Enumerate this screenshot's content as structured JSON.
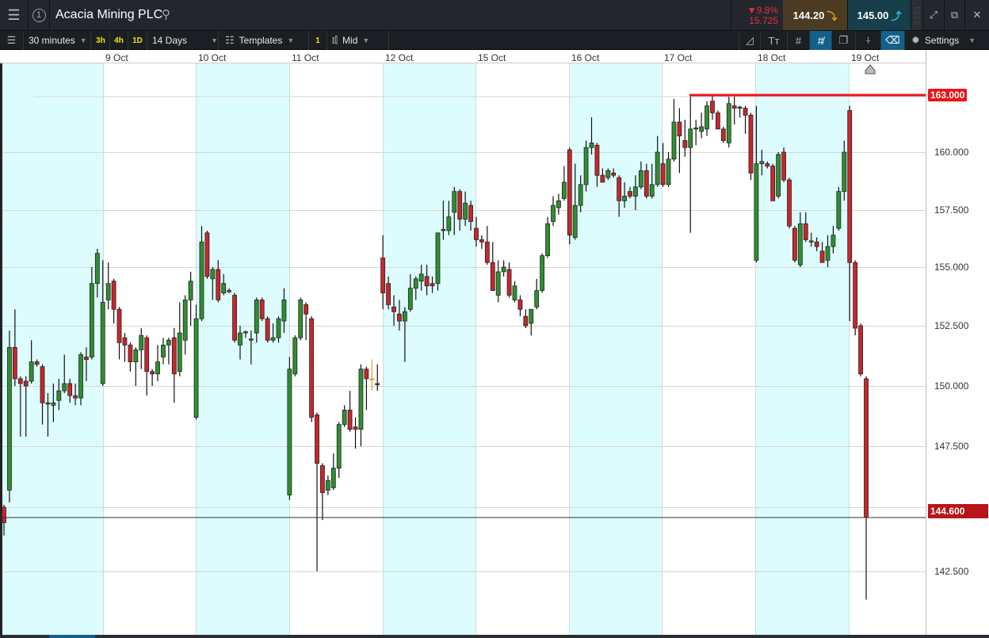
{
  "header": {
    "title": "Acacia Mining PLC",
    "window_number": "1",
    "change_pct": "9.8%",
    "change_value": "15.725",
    "sell_price": "144.20",
    "buy_price": "145.00"
  },
  "toolbar": {
    "interval": "30 minutes",
    "quick_ranges": [
      "3h",
      "4h",
      "1D"
    ],
    "range": "14 Days",
    "templates": "Templates",
    "indicator_count": "1",
    "price_type": "Mid",
    "settings": "Settings",
    "tools": [
      "drawing-tool",
      "text-size",
      "grid",
      "snap-grid",
      "layers",
      "crosshair",
      "price-tag"
    ],
    "active_tools": [
      "snap-grid",
      "price-tag"
    ]
  },
  "colors": {
    "up": "#2f8f2f",
    "down": "#c8262b",
    "flat": "#e0a040",
    "shade": "#ddfcfe",
    "change": "#e8303a",
    "sell_bg": "#4a3b22",
    "buy_bg": "#173f4b"
  },
  "chart_data": {
    "type": "candlestick",
    "x_labels": [
      "9 Oct",
      "10 Oct",
      "11 Oct",
      "12 Oct",
      "15 Oct",
      "16 Oct",
      "17 Oct",
      "18 Oct",
      "19 Oct"
    ],
    "y_ticks": [
      "160.000",
      "157.500",
      "155.000",
      "152.500",
      "150.000",
      "147.500",
      "142.500"
    ],
    "horizontal_line": {
      "label": "163.000"
    },
    "current_price": {
      "value": 144.6,
      "label": "144.600"
    },
    "candles_ohlc": [
      [
        145.0,
        145.1,
        143.9,
        144.4
      ],
      [
        145.7,
        152.3,
        145.2,
        151.6
      ],
      [
        151.6,
        153.2,
        150.0,
        150.3
      ],
      [
        150.3,
        150.4,
        147.9,
        150.1
      ],
      [
        150.2,
        150.4,
        147.9,
        150.0
      ],
      [
        150.2,
        151.9,
        150.1,
        151.0
      ],
      [
        151.0,
        151.1,
        150.8,
        150.9
      ],
      [
        150.8,
        150.9,
        148.4,
        149.3
      ],
      [
        149.3,
        149.7,
        147.9,
        149.25
      ],
      [
        149.2,
        150.1,
        148.5,
        149.3
      ],
      [
        149.4,
        150.3,
        149.0,
        149.8
      ],
      [
        149.8,
        151.3,
        149.7,
        150.1
      ],
      [
        150.1,
        150.3,
        149.3,
        149.6
      ],
      [
        149.6,
        150.1,
        149.2,
        149.5
      ],
      [
        149.5,
        151.4,
        149.2,
        151.3
      ],
      [
        151.2,
        151.6,
        150.2,
        151.1
      ],
      [
        151.2,
        155.0,
        151.1,
        154.3
      ],
      [
        154.3,
        155.8,
        153.7,
        155.6
      ],
      [
        150.1,
        155.3,
        150.0,
        153.5
      ],
      [
        153.6,
        155.2,
        153.2,
        154.3
      ],
      [
        154.4,
        154.5,
        152.6,
        153.2
      ],
      [
        153.2,
        153.3,
        151.1,
        151.8
      ],
      [
        152.0,
        152.2,
        151.0,
        151.7
      ],
      [
        151.7,
        151.8,
        150.6,
        151.0
      ],
      [
        151.0,
        151.6,
        150.0,
        151.5
      ],
      [
        151.5,
        152.4,
        150.7,
        152.1
      ],
      [
        152.0,
        152.1,
        149.6,
        150.6
      ],
      [
        150.6,
        150.7,
        150.0,
        150.5
      ],
      [
        150.5,
        151.7,
        150.2,
        151.0
      ],
      [
        151.2,
        152.0,
        150.9,
        151.7
      ],
      [
        151.7,
        152.0,
        150.9,
        151.9
      ],
      [
        152.0,
        152.4,
        149.3,
        150.5
      ],
      [
        150.6,
        153.5,
        150.4,
        152.2
      ],
      [
        151.9,
        153.8,
        151.3,
        153.6
      ],
      [
        153.6,
        154.8,
        152.5,
        154.4
      ],
      [
        148.7,
        153.4,
        148.6,
        152.8
      ],
      [
        152.8,
        156.8,
        152.7,
        156.1
      ],
      [
        156.5,
        156.6,
        154.5,
        154.6
      ],
      [
        154.5,
        155.0,
        153.6,
        154.9
      ],
      [
        154.9,
        155.3,
        153.5,
        153.6
      ],
      [
        153.9,
        154.7,
        153.8,
        154.3
      ],
      [
        154.0,
        154.1,
        153.9,
        153.95
      ],
      [
        153.8,
        153.9,
        151.8,
        151.9
      ],
      [
        151.7,
        152.5,
        151.1,
        152.2
      ],
      [
        152.2,
        152.3,
        152.0,
        152.25
      ],
      [
        151.9,
        152.3,
        150.9,
        151.95
      ],
      [
        152.2,
        153.7,
        151.8,
        153.6
      ],
      [
        153.6,
        153.7,
        152.7,
        152.8
      ],
      [
        152.8,
        152.9,
        151.8,
        151.9
      ],
      [
        151.9,
        152.6,
        151.8,
        152.0
      ],
      [
        152.0,
        152.9,
        151.8,
        152.8
      ],
      [
        152.7,
        154.1,
        152.2,
        153.6
      ],
      [
        145.5,
        151.2,
        145.3,
        150.7
      ],
      [
        150.5,
        152.1,
        150.4,
        152.0
      ],
      [
        152.0,
        153.7,
        151.9,
        153.6
      ],
      [
        153.4,
        153.5,
        151.9,
        153.0
      ],
      [
        152.8,
        152.9,
        148.5,
        148.7
      ],
      [
        148.8,
        148.9,
        142.5,
        146.8
      ],
      [
        146.7,
        146.8,
        144.5,
        145.6
      ],
      [
        145.7,
        146.3,
        145.5,
        146.1
      ],
      [
        145.8,
        147.2,
        145.7,
        146.6
      ],
      [
        146.6,
        148.5,
        146.2,
        148.4
      ],
      [
        148.4,
        149.2,
        148.3,
        149.0
      ],
      [
        149.0,
        149.8,
        148.1,
        148.2
      ],
      [
        148.3,
        148.7,
        147.4,
        148.2
      ],
      [
        148.2,
        150.9,
        147.5,
        150.7
      ],
      [
        150.7,
        150.8,
        149.0,
        150.3
      ],
      [
        150.3,
        151.1,
        149.8,
        150.3
      ],
      [
        150.1,
        150.9,
        149.8,
        150.05
      ],
      [
        155.4,
        156.4,
        153.2,
        153.9
      ],
      [
        154.3,
        154.6,
        153.2,
        153.4
      ],
      [
        153.3,
        153.8,
        152.5,
        153.1
      ],
      [
        153.0,
        153.6,
        152.3,
        152.7
      ],
      [
        152.7,
        153.3,
        151.0,
        153.1
      ],
      [
        153.2,
        154.7,
        153.1,
        154.1
      ],
      [
        154.1,
        154.6,
        153.6,
        154.5
      ],
      [
        154.4,
        155.1,
        154.0,
        154.7
      ],
      [
        154.6,
        155.1,
        153.8,
        154.2
      ],
      [
        154.3,
        154.6,
        153.9,
        154.2
      ],
      [
        154.3,
        156.5,
        154.0,
        156.5
      ],
      [
        156.6,
        157.9,
        156.2,
        156.65
      ],
      [
        156.6,
        157.9,
        156.4,
        157.2
      ],
      [
        157.4,
        158.5,
        156.4,
        158.3
      ],
      [
        158.3,
        158.4,
        156.6,
        157.1
      ],
      [
        157.1,
        158.3,
        156.8,
        157.8
      ],
      [
        157.7,
        157.9,
        156.6,
        157.0
      ],
      [
        156.7,
        157.2,
        155.9,
        156.2
      ],
      [
        156.2,
        156.4,
        155.8,
        156.1
      ],
      [
        156.1,
        156.8,
        155.1,
        155.2
      ],
      [
        155.2,
        156.1,
        154.0,
        154.0
      ],
      [
        153.8,
        155.3,
        153.5,
        154.8
      ],
      [
        154.8,
        155.3,
        154.6,
        155.0
      ],
      [
        154.9,
        155.2,
        153.7,
        153.8
      ],
      [
        153.6,
        154.4,
        153.5,
        154.2
      ],
      [
        153.6,
        153.8,
        152.9,
        153.2
      ],
      [
        152.9,
        153.2,
        152.4,
        152.5
      ],
      [
        152.6,
        153.2,
        152.1,
        153.2
      ],
      [
        153.3,
        154.5,
        153.2,
        154.0
      ],
      [
        154.0,
        155.6,
        153.9,
        155.5
      ],
      [
        155.5,
        157.2,
        155.4,
        156.9
      ],
      [
        157.0,
        158.1,
        156.8,
        157.7
      ],
      [
        157.6,
        158.2,
        157.3,
        157.9
      ],
      [
        158.0,
        159.4,
        157.9,
        158.7
      ],
      [
        160.1,
        160.2,
        156.0,
        156.4
      ],
      [
        156.3,
        159.5,
        156.2,
        157.7
      ],
      [
        157.7,
        159.0,
        157.4,
        158.6
      ],
      [
        158.6,
        160.5,
        158.3,
        160.2
      ],
      [
        160.2,
        161.5,
        159.9,
        160.4
      ],
      [
        160.3,
        160.4,
        158.5,
        159.0
      ],
      [
        159.0,
        159.3,
        158.7,
        158.7
      ],
      [
        158.9,
        159.3,
        158.8,
        159.2
      ],
      [
        159.1,
        159.3,
        158.9,
        159.0
      ],
      [
        158.9,
        159.0,
        157.2,
        157.9
      ],
      [
        157.9,
        158.7,
        157.6,
        158.1
      ],
      [
        158.3,
        158.5,
        158.0,
        158.1
      ],
      [
        158.1,
        159.0,
        157.5,
        158.5
      ],
      [
        158.5,
        159.6,
        158.4,
        159.2
      ],
      [
        159.2,
        159.5,
        158.0,
        158.1
      ],
      [
        158.1,
        159.5,
        158.0,
        158.6
      ],
      [
        158.6,
        160.7,
        158.5,
        160.0
      ],
      [
        159.5,
        160.4,
        158.5,
        158.6
      ],
      [
        158.6,
        160.0,
        158.5,
        159.7
      ],
      [
        159.7,
        162.3,
        159.6,
        161.3
      ],
      [
        161.3,
        161.9,
        159.1,
        160.7
      ],
      [
        160.5,
        161.4,
        159.8,
        160.2
      ],
      [
        160.2,
        162.4,
        156.5,
        161.0
      ],
      [
        161.0,
        161.4,
        160.3,
        161.05
      ],
      [
        160.9,
        161.7,
        160.6,
        161.1
      ],
      [
        161.0,
        162.2,
        160.7,
        162.0
      ],
      [
        162.2,
        162.5,
        161.4,
        161.7
      ],
      [
        161.7,
        161.8,
        161.0,
        161.0
      ],
      [
        161.0,
        161.1,
        160.4,
        160.5
      ],
      [
        160.4,
        162.4,
        160.2,
        162.1
      ],
      [
        162.0,
        162.4,
        161.2,
        161.9
      ],
      [
        161.9,
        162.0,
        161.5,
        161.95
      ],
      [
        161.9,
        162.0,
        160.8,
        161.6
      ],
      [
        161.6,
        161.7,
        158.8,
        159.1
      ],
      [
        155.3,
        162.0,
        155.2,
        159.5
      ],
      [
        159.5,
        160.1,
        159.0,
        159.6
      ],
      [
        159.5,
        159.6,
        159.3,
        159.4
      ],
      [
        159.4,
        159.5,
        157.9,
        157.9
      ],
      [
        158.1,
        160.0,
        158.0,
        159.9
      ],
      [
        160.0,
        160.2,
        158.7,
        158.8
      ],
      [
        158.8,
        158.9,
        156.7,
        156.8
      ],
      [
        156.7,
        156.8,
        155.2,
        155.3
      ],
      [
        155.1,
        157.4,
        155.0,
        156.9
      ],
      [
        156.9,
        157.4,
        156.1,
        156.2
      ],
      [
        156.1,
        156.5,
        155.9,
        156.15
      ],
      [
        156.1,
        156.3,
        155.7,
        155.9
      ],
      [
        155.7,
        156.1,
        155.2,
        155.2
      ],
      [
        155.3,
        156.4,
        155.0,
        155.9
      ],
      [
        155.9,
        156.8,
        155.6,
        156.4
      ],
      [
        156.7,
        158.5,
        156.6,
        158.3
      ],
      [
        158.3,
        160.5,
        157.9,
        160.0
      ],
      [
        161.8,
        162.0,
        152.7,
        155.2
      ],
      [
        155.2,
        155.3,
        152.1,
        152.4
      ],
      [
        152.5,
        152.6,
        150.4,
        150.5
      ],
      [
        150.3,
        150.4,
        141.4,
        144.6
      ]
    ]
  }
}
